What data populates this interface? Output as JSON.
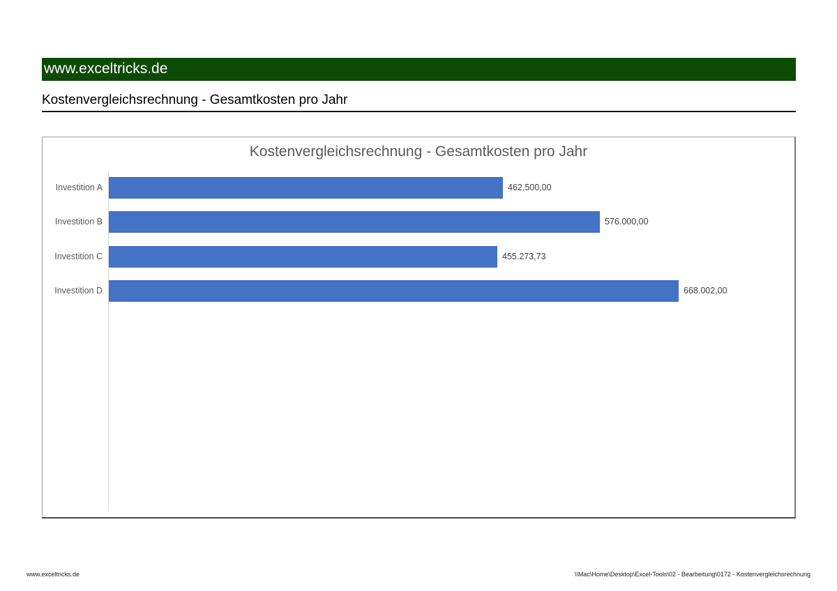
{
  "banner": {
    "text": "www.exceltricks.de",
    "bg_color": "#0d4a06",
    "text_color": "#ffffff"
  },
  "heading": "Kostenvergleichsrechnung - Gesamtkosten pro Jahr",
  "chart_data": {
    "type": "bar",
    "orientation": "horizontal",
    "title": "Kostenvergleichsrechnung - Gesamtkosten pro Jahr",
    "categories": [
      "Investition A",
      "Investition B",
      "Investition C",
      "Investition D"
    ],
    "values": [
      462500,
      576000,
      455273.73,
      668002
    ],
    "data_labels": [
      "462.500,00",
      "576.000,00",
      "455.273,73",
      "668.002,00"
    ],
    "xlim": [
      0,
      800000
    ],
    "grid": false,
    "legend": false,
    "bar_color": "#4472C4",
    "title_color": "#595959",
    "category_color": "#595959",
    "data_label_color": "#404040",
    "axis_line_color": "#d9d9d9"
  },
  "footer": {
    "left": "www.exceltricks.de",
    "right": "\\\\Mac\\Home\\Desktop\\Excel-Tools\\02 - Bearbeitung\\0172 - Kostenvergleichsrechnung"
  }
}
